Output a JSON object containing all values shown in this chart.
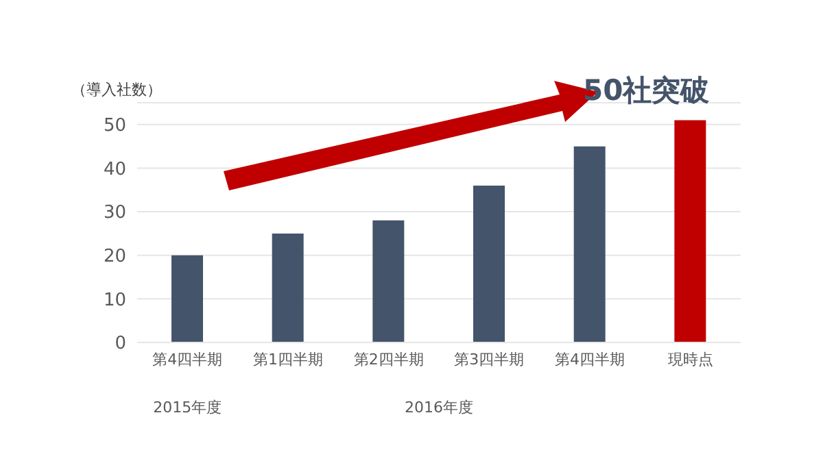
{
  "chart_data": {
    "type": "bar",
    "ylabel": "（導入社数）",
    "categories": [
      "第4四半期",
      "第1四半期",
      "第2四半期",
      "第3四半期",
      "第4四半期",
      "現時点"
    ],
    "values": [
      20,
      25,
      28,
      36,
      45,
      51
    ],
    "colors": [
      "#44546a",
      "#44546a",
      "#44546a",
      "#44546a",
      "#44546a",
      "#c00000"
    ],
    "ylim": [
      0,
      55
    ],
    "yticks": [
      0,
      10,
      20,
      30,
      40,
      50
    ],
    "grid": "y",
    "annotations": [
      "50社突破",
      "2015年度",
      "2016年度"
    ]
  }
}
